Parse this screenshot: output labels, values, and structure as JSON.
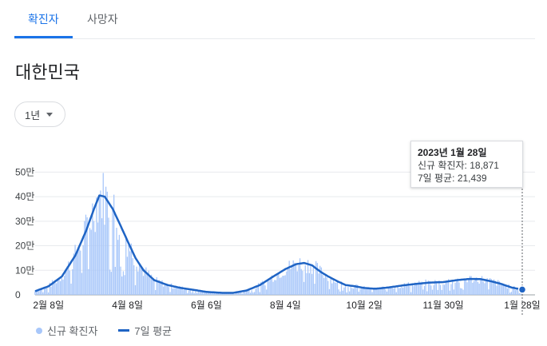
{
  "tabs": [
    {
      "label": "확진자",
      "active": true
    },
    {
      "label": "사망자",
      "active": false
    }
  ],
  "region": "대한민국",
  "period": {
    "selected": "1년"
  },
  "tooltip": {
    "date": "2023년 1월 28일",
    "new_cases_label": "신규 확진자",
    "new_cases_value": "18,871",
    "avg_label": "7일 평균",
    "avg_value": "21,439"
  },
  "legend": {
    "bars": "신규 확진자",
    "line": "7일 평균"
  },
  "colors": {
    "bar": "#a8c7fa",
    "line": "#1f64c4",
    "accent": "#1a73e8"
  },
  "chart_data": {
    "type": "bar",
    "ylim": [
      0,
      550000
    ],
    "y_ticks": [
      {
        "value": 0,
        "label": "0"
      },
      {
        "value": 100000,
        "label": "10만"
      },
      {
        "value": 200000,
        "label": "20만"
      },
      {
        "value": 300000,
        "label": "30만"
      },
      {
        "value": 400000,
        "label": "40만"
      },
      {
        "value": 500000,
        "label": "50만"
      }
    ],
    "x_range": [
      "2022-01-29",
      "2023-01-28"
    ],
    "x_ticks": [
      {
        "date": "2022-02-08",
        "label": "2월 8일"
      },
      {
        "date": "2022-04-08",
        "label": "4월 8일"
      },
      {
        "date": "2022-06-06",
        "label": "6월 6일"
      },
      {
        "date": "2022-08-04",
        "label": "8월 4일"
      },
      {
        "date": "2022-10-02",
        "label": "10월 2일"
      },
      {
        "date": "2022-11-30",
        "label": "11월 30일"
      },
      {
        "date": "2023-01-28",
        "label": "1월 28일"
      }
    ],
    "series": [
      {
        "name": "7일 평균",
        "kind": "line",
        "points": [
          [
            "2022-01-29",
            15000
          ],
          [
            "2022-02-08",
            35000
          ],
          [
            "2022-02-18",
            75000
          ],
          [
            "2022-02-28",
            160000
          ],
          [
            "2022-03-08",
            260000
          ],
          [
            "2022-03-14",
            350000
          ],
          [
            "2022-03-18",
            405000
          ],
          [
            "2022-03-22",
            400000
          ],
          [
            "2022-03-28",
            350000
          ],
          [
            "2022-04-03",
            280000
          ],
          [
            "2022-04-08",
            220000
          ],
          [
            "2022-04-14",
            150000
          ],
          [
            "2022-04-20",
            100000
          ],
          [
            "2022-04-28",
            60000
          ],
          [
            "2022-05-08",
            40000
          ],
          [
            "2022-05-18",
            28000
          ],
          [
            "2022-05-28",
            20000
          ],
          [
            "2022-06-06",
            12000
          ],
          [
            "2022-06-18",
            8000
          ],
          [
            "2022-06-26",
            8000
          ],
          [
            "2022-07-06",
            18000
          ],
          [
            "2022-07-16",
            40000
          ],
          [
            "2022-07-26",
            75000
          ],
          [
            "2022-08-04",
            105000
          ],
          [
            "2022-08-12",
            125000
          ],
          [
            "2022-08-18",
            130000
          ],
          [
            "2022-08-24",
            120000
          ],
          [
            "2022-08-30",
            95000
          ],
          [
            "2022-09-05",
            75000
          ],
          [
            "2022-09-12",
            55000
          ],
          [
            "2022-09-18",
            40000
          ],
          [
            "2022-09-25",
            35000
          ],
          [
            "2022-10-02",
            28000
          ],
          [
            "2022-10-10",
            25000
          ],
          [
            "2022-10-20",
            30000
          ],
          [
            "2022-10-30",
            38000
          ],
          [
            "2022-11-10",
            45000
          ],
          [
            "2022-11-20",
            50000
          ],
          [
            "2022-11-30",
            52000
          ],
          [
            "2022-12-10",
            60000
          ],
          [
            "2022-12-20",
            65000
          ],
          [
            "2022-12-28",
            64000
          ],
          [
            "2023-01-05",
            55000
          ],
          [
            "2023-01-12",
            45000
          ],
          [
            "2023-01-20",
            30000
          ],
          [
            "2023-01-28",
            21439
          ]
        ]
      }
    ]
  }
}
